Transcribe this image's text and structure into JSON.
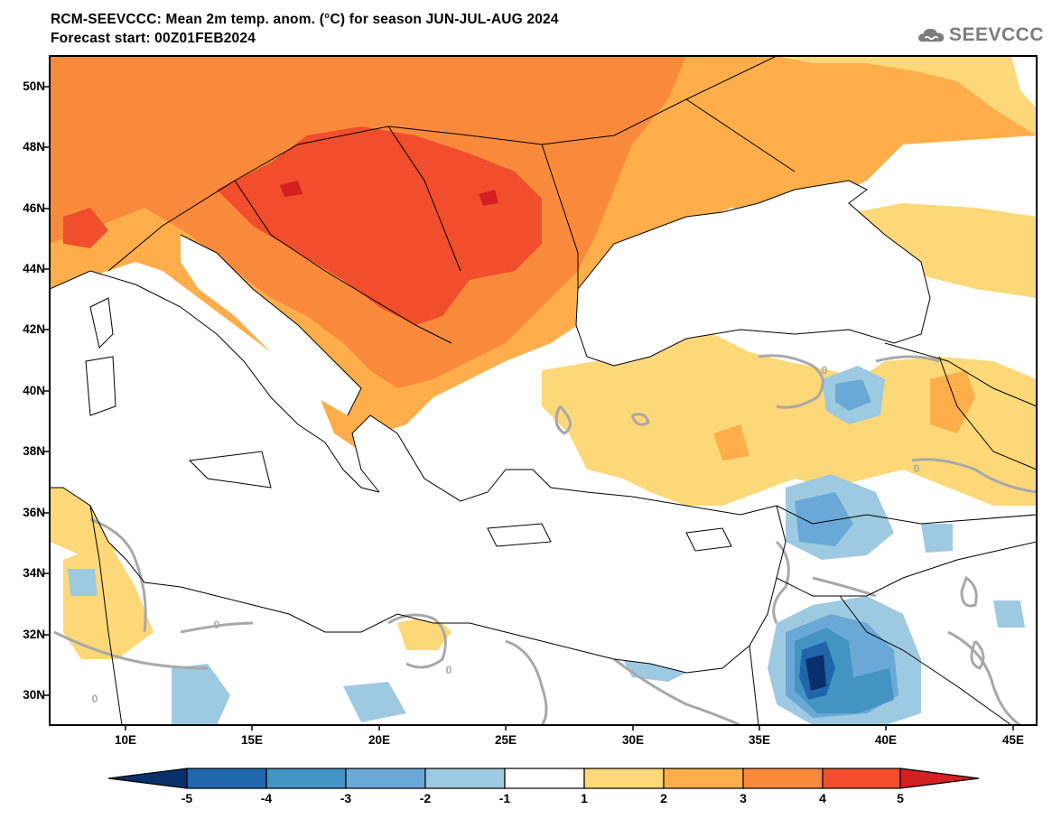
{
  "header": {
    "title": "RCM-SEEVCCC: Mean 2m temp. anom. (°C) for season JUN-JUL-AUG 2024",
    "subtitle": "Forecast start: 00Z01FEB2024",
    "logo_text": "SEEVCCC"
  },
  "map": {
    "latitude_labels": [
      "50N",
      "48N",
      "46N",
      "44N",
      "42N",
      "40N",
      "38N",
      "36N",
      "34N",
      "32N",
      "30N"
    ],
    "longitude_labels": [
      "10E",
      "15E",
      "20E",
      "25E",
      "30E",
      "35E",
      "40E",
      "45E"
    ],
    "contour_label": "0"
  },
  "colorbar": {
    "tick_labels": [
      "-5",
      "-4",
      "-3",
      "-2",
      "-1",
      "1",
      "2",
      "3",
      "4",
      "5"
    ],
    "colors": [
      "#08306b",
      "#2166ac",
      "#4393c3",
      "#6aa8d8",
      "#9ecae1",
      "#ffffff",
      "#fdd878",
      "#fdae4b",
      "#f98a3c",
      "#f04e2c",
      "#d42020"
    ]
  },
  "palette": {
    "anomaly_5": "#f04e2c",
    "anomaly_4": "#f98a3c",
    "anomaly_3": "#fdae4b",
    "anomaly_2": "#fdd878",
    "anomaly_neg2": "#9ecae1",
    "anomaly_neg3": "#6aa8d8",
    "anomaly_neg4": "#4393c3",
    "anomaly_neg5": "#2166ac",
    "anomaly_neg6": "#08306b",
    "contour": "#a8a8a8"
  }
}
